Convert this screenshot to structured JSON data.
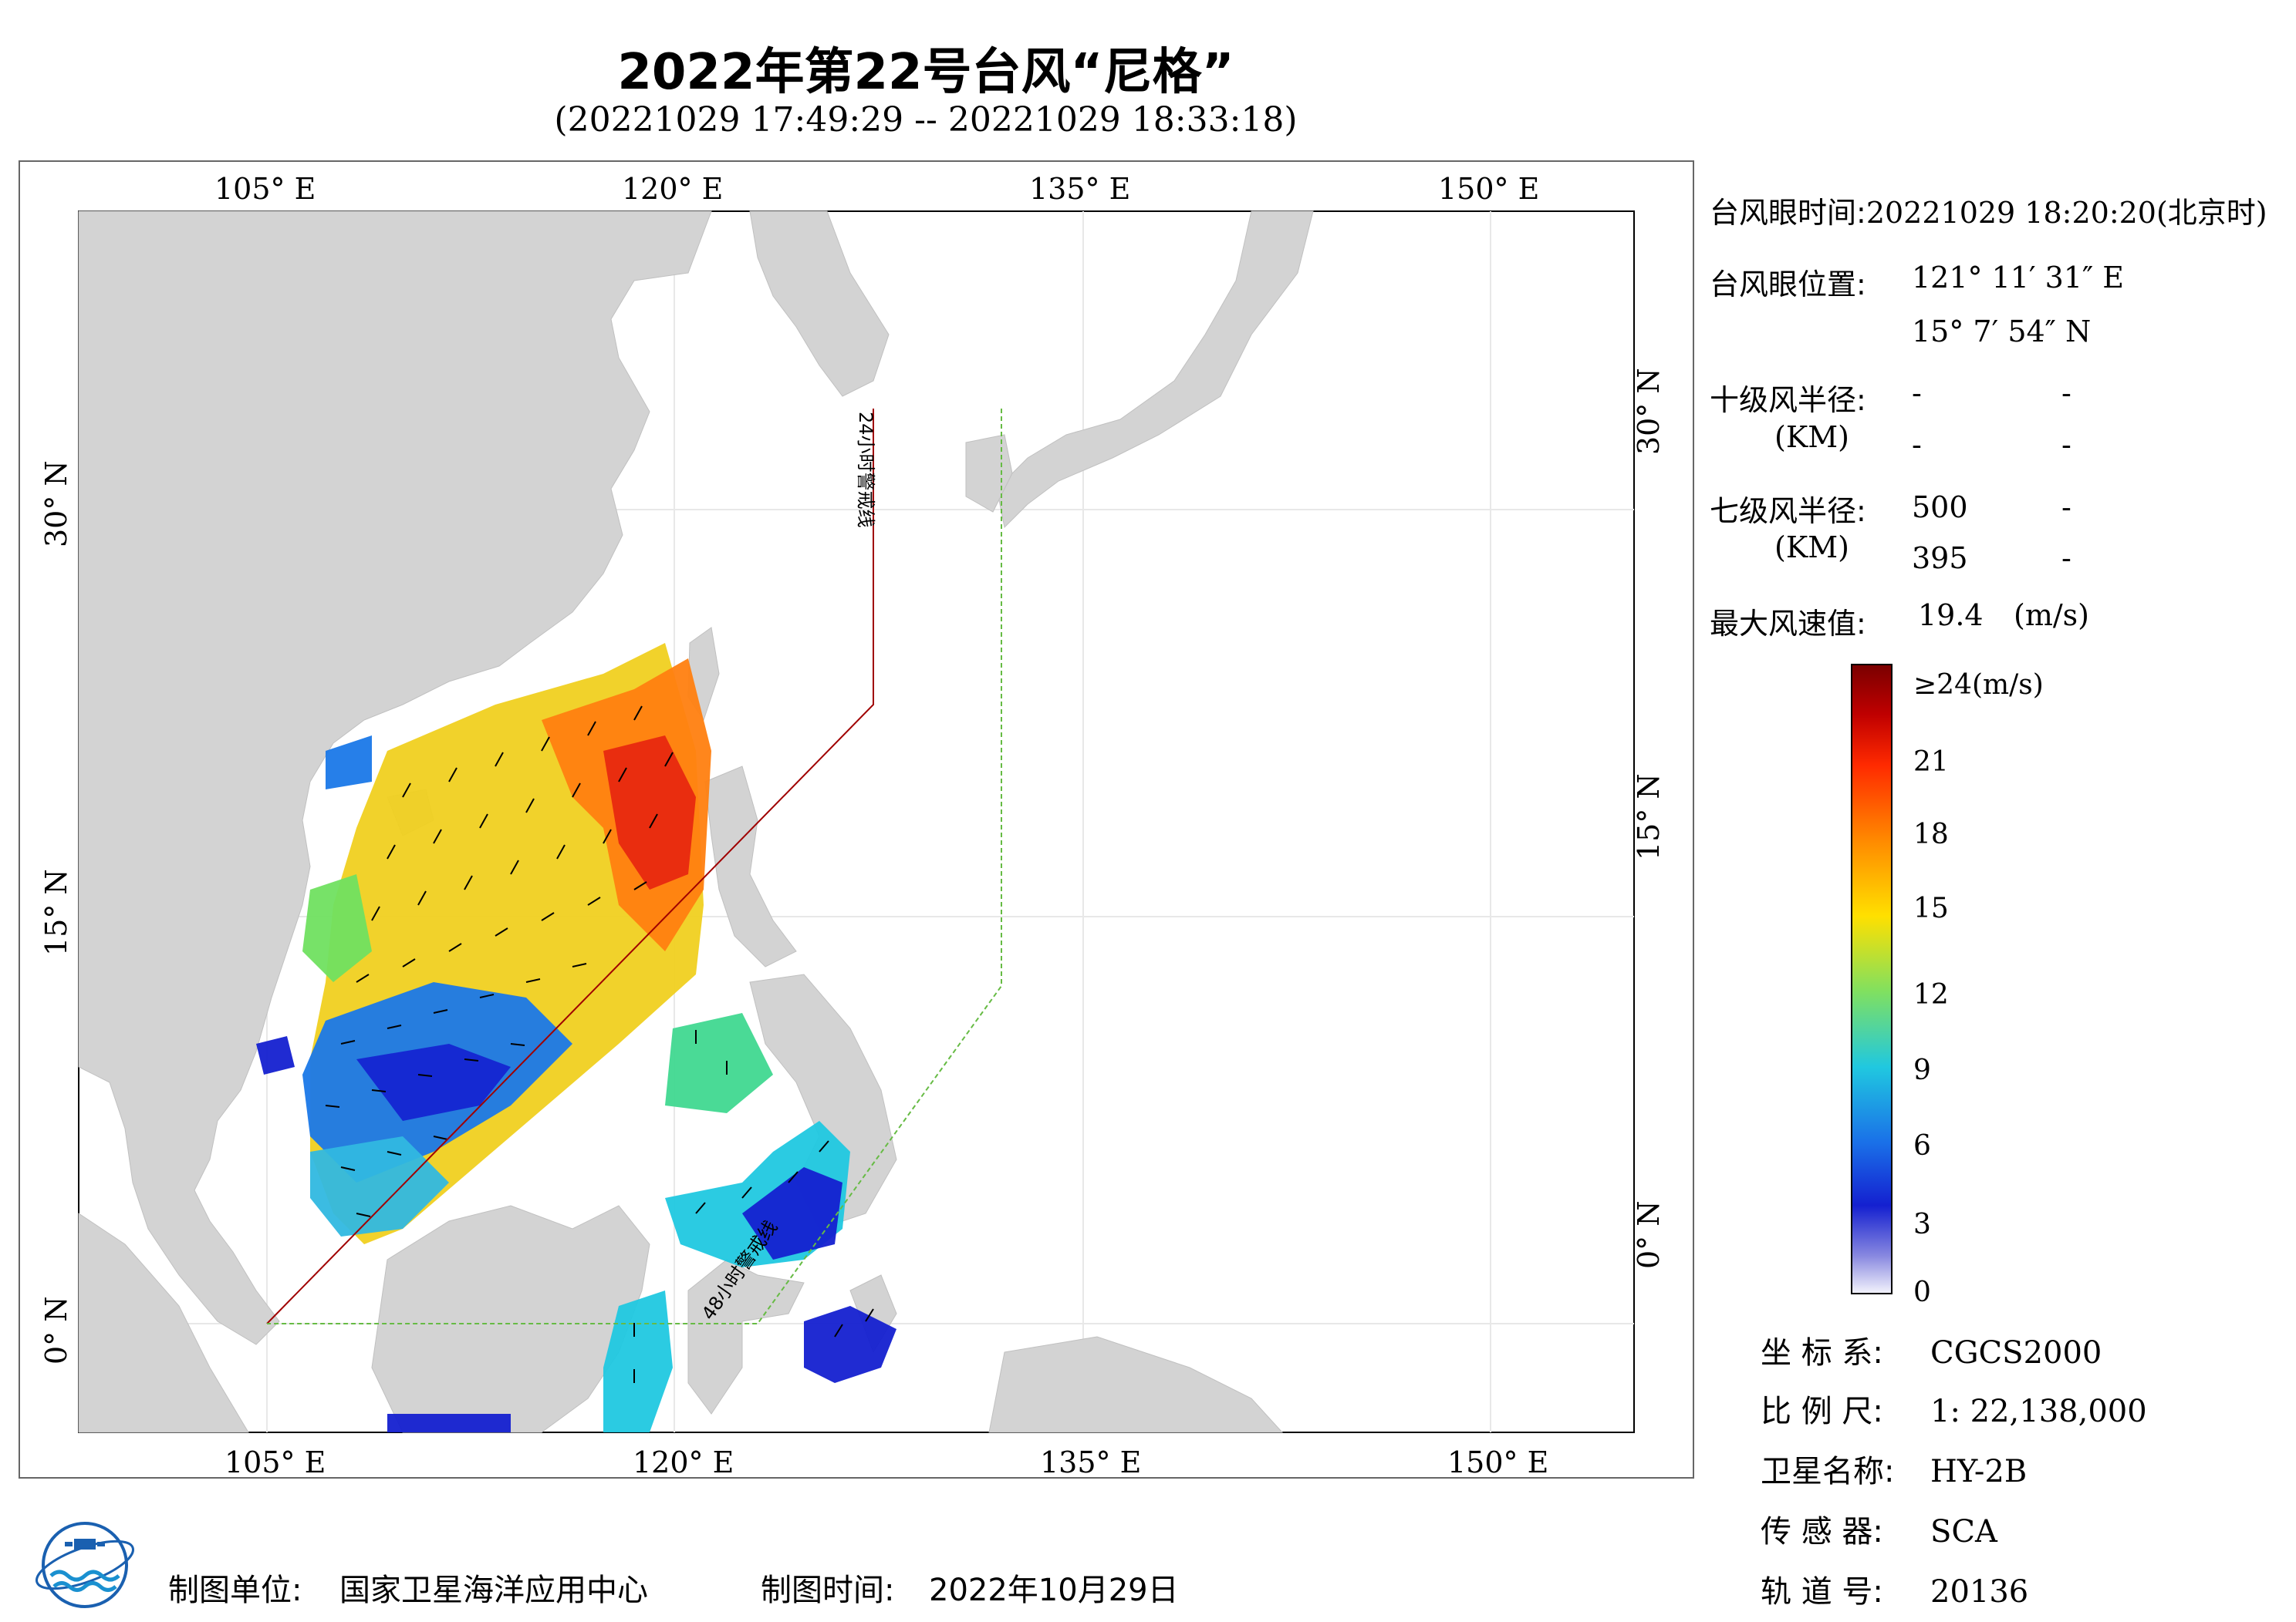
{
  "header": {
    "title": "2022年第22号台风“尼格”",
    "time_range": "(20221029 17:49:29 -- 20221029 18:33:18)"
  },
  "map": {
    "lon_labels": [
      "105° E",
      "120° E",
      "135° E",
      "150° E"
    ],
    "lat_labels": [
      "30° N",
      "15° N",
      "0° N"
    ],
    "warning_line_24h": "24小时警戒线",
    "warning_line_48h": "48小时警戒线",
    "colors": {
      "land": "#d3d3d3",
      "sea": "#ffffff",
      "warning_24h": "#a00000",
      "warning_48h": "#66bb44"
    }
  },
  "info": {
    "eye_time_label": "台风眼时间:",
    "eye_time_value": "20221029 18:20:20(北京时)",
    "eye_pos_label": "台风眼位置:",
    "eye_lon": "121° 11′ 31″ E",
    "eye_lat": "15° 7′ 54″ N",
    "r10_label": "十级风半径:",
    "km_label": "(KM)",
    "r10_values": [
      "-",
      "-",
      "-",
      "-"
    ],
    "r7_label": "七级风半径:",
    "r7_values": [
      "500",
      "-",
      "395",
      "-"
    ],
    "max_wind_label": "最大风速值:",
    "max_wind_value": "19.4",
    "max_wind_unit": "(m/s)"
  },
  "colorbar": {
    "labels": [
      "≥24(m/s)",
      "21",
      "18",
      "15",
      "12",
      "9",
      "6",
      "3",
      "0"
    ],
    "colors": [
      "#7a0000",
      "#d21010",
      "#ff4a00",
      "#ff9a00",
      "#ffe000",
      "#b0e840",
      "#40d890",
      "#20c8e0",
      "#1a78e8",
      "#1420d0",
      "#e8e8f8"
    ]
  },
  "meta": {
    "crs_label": "坐 标 系:",
    "crs_value": "CGCS2000",
    "scale_label": "比 例 尺:",
    "scale_value": "1: 22,138,000",
    "sat_label": "卫星名称:",
    "sat_value": "HY-2B",
    "sensor_label": "传 感 器:",
    "sensor_value": "SCA",
    "orbit_label": "轨 道 号:",
    "orbit_value": "20136"
  },
  "footer": {
    "org_label": "制图单位:",
    "org_value": "国家卫星海洋应用中心",
    "date_label": "制图时间:",
    "date_value": "2022年10月29日"
  },
  "icons": {
    "logo": "globe-wave-logo-icon"
  }
}
